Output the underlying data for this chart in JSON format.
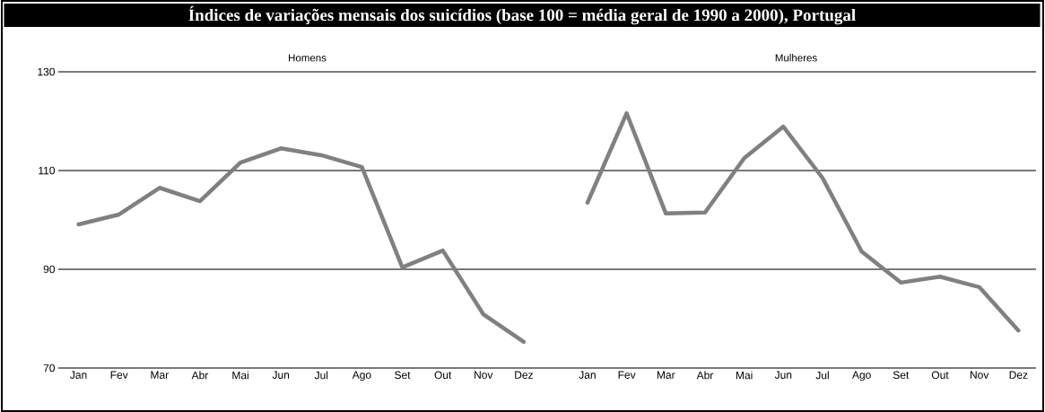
{
  "chart_data": [
    {
      "type": "line",
      "title": "Índices de variações mensais dos suicídios (base 100 = média geral de 1990 a 2000), Portugal",
      "subtitle": "Homens",
      "categories": [
        "Jan",
        "Fev",
        "Mar",
        "Abr",
        "Mai",
        "Jun",
        "Jul",
        "Ago",
        "Set",
        "Out",
        "Nov",
        "Dez"
      ],
      "series": [
        {
          "color": "#808080",
          "values": [
            99.1,
            101.1,
            106.5,
            103.8,
            111.6,
            114.5,
            113.1,
            110.7,
            90.4,
            93.8,
            80.9,
            75.3
          ]
        }
      ],
      "ylim": [
        70,
        130
      ],
      "yticks": [
        70,
        90,
        110,
        130
      ],
      "grid": "y"
    },
    {
      "type": "line",
      "subtitle": "Mulheres",
      "categories": [
        "Jan",
        "Fev",
        "Mar",
        "Abr",
        "Mai",
        "Jun",
        "Jul",
        "Ago",
        "Set",
        "Out",
        "Nov",
        "Dez"
      ],
      "series": [
        {
          "color": "#808080",
          "values": [
            103.5,
            121.6,
            101.3,
            101.5,
            112.5,
            118.9,
            108.5,
            93.6,
            87.3,
            88.5,
            86.4,
            77.6
          ]
        }
      ],
      "ylim": [
        70,
        130
      ],
      "yticks": [
        70,
        90,
        110,
        130
      ],
      "grid": "y",
      "tick_labels": "x"
    }
  ]
}
